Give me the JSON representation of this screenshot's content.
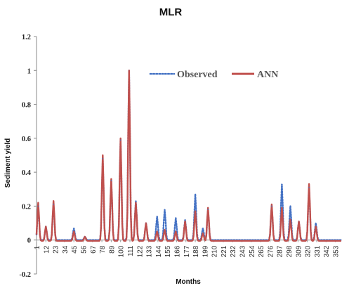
{
  "chart_data": {
    "type": "line",
    "title": "MLR",
    "xlabel": "Months",
    "ylabel": "Sediment yield",
    "ylim": [
      -0.2,
      1.2
    ],
    "xlim": [
      1,
      360
    ],
    "yticks": [
      "-0.2",
      "0",
      "0.2",
      "0.4",
      "0.6",
      "0.8",
      "1",
      "1.2"
    ],
    "xticks": [
      "1",
      "12",
      "23",
      "34",
      "45",
      "56",
      "67",
      "78",
      "89",
      "100",
      "111",
      "122",
      "133",
      "144",
      "155",
      "166",
      "177",
      "188",
      "199",
      "210",
      "221",
      "232",
      "243",
      "254",
      "265",
      "276",
      "287",
      "298",
      "309",
      "320",
      "331",
      "342",
      "353"
    ],
    "legend": "top-center",
    "grid": false,
    "series": [
      {
        "name": "Observed",
        "style": "dotted",
        "color": "#4472C4",
        "peaks": [
          [
            3,
            0.2
          ],
          [
            12,
            0.08
          ],
          [
            21,
            0.21
          ],
          [
            45,
            0.07
          ],
          [
            58,
            0.02
          ],
          [
            79,
            0.48
          ],
          [
            89,
            0.35
          ],
          [
            100,
            0.59
          ],
          [
            110,
            1.0
          ],
          [
            118,
            0.23
          ],
          [
            130,
            0.1
          ],
          [
            143,
            0.14
          ],
          [
            152,
            0.18
          ],
          [
            165,
            0.13
          ],
          [
            176,
            0.12
          ],
          [
            188,
            0.27
          ],
          [
            197,
            0.07
          ],
          [
            203,
            0.18
          ],
          [
            278,
            0.2
          ],
          [
            290,
            0.33
          ],
          [
            300,
            0.2
          ],
          [
            310,
            0.11
          ],
          [
            322,
            0.31
          ],
          [
            330,
            0.1
          ]
        ]
      },
      {
        "name": "ANN",
        "style": "solid",
        "color": "#C0504D",
        "peaks": [
          [
            3,
            0.22
          ],
          [
            12,
            0.08
          ],
          [
            21,
            0.23
          ],
          [
            45,
            0.05
          ],
          [
            58,
            0.02
          ],
          [
            79,
            0.5
          ],
          [
            89,
            0.36
          ],
          [
            100,
            0.6
          ],
          [
            110,
            1.0
          ],
          [
            118,
            0.22
          ],
          [
            130,
            0.1
          ],
          [
            143,
            0.05
          ],
          [
            152,
            0.06
          ],
          [
            165,
            0.05
          ],
          [
            176,
            0.11
          ],
          [
            188,
            0.17
          ],
          [
            197,
            0.04
          ],
          [
            203,
            0.19
          ],
          [
            278,
            0.21
          ],
          [
            290,
            0.19
          ],
          [
            300,
            0.12
          ],
          [
            310,
            0.11
          ],
          [
            322,
            0.33
          ],
          [
            330,
            0.08
          ]
        ]
      }
    ]
  }
}
